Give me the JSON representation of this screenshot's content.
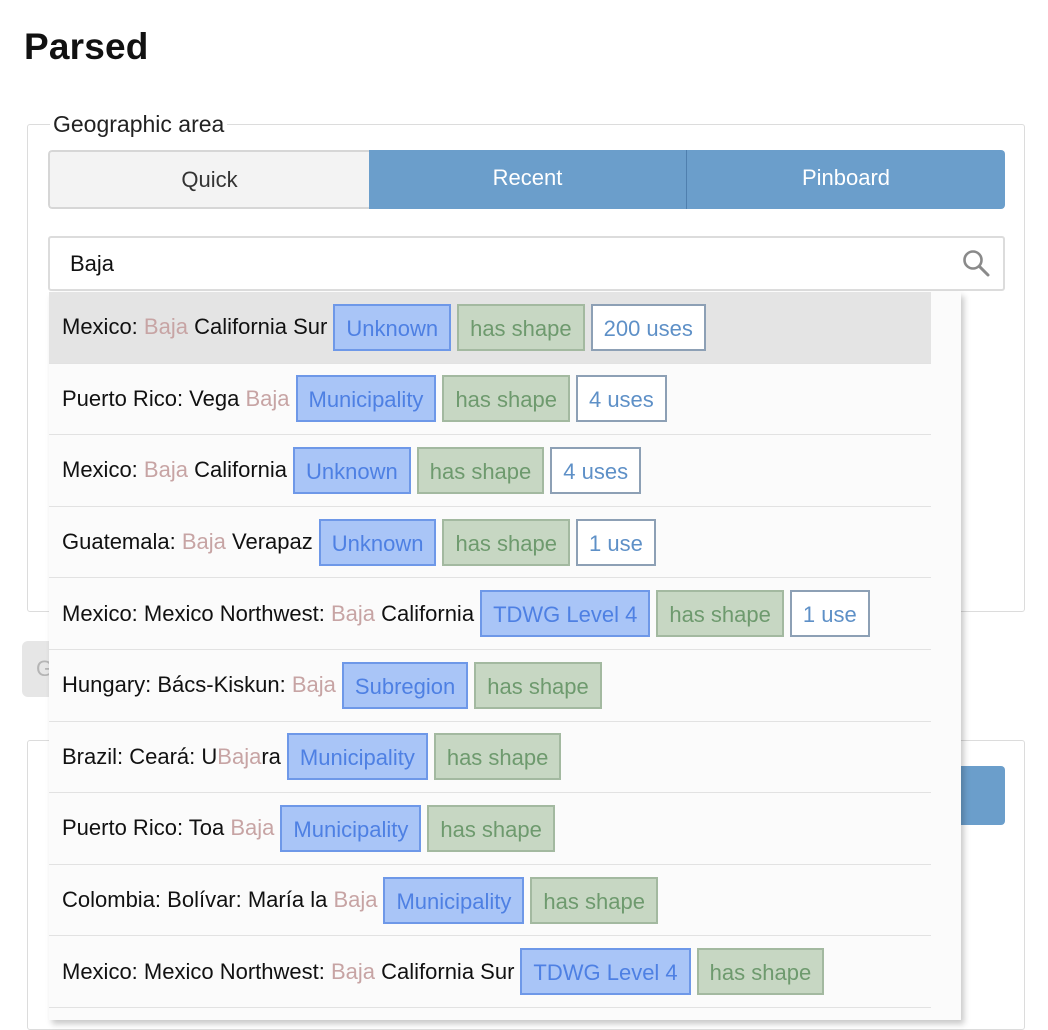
{
  "page": {
    "title": "Parsed"
  },
  "geographic_area": {
    "legend": "Geographic area",
    "tabs": [
      {
        "label": "Quick",
        "active": true
      },
      {
        "label": "Recent",
        "active": false
      },
      {
        "label": "Pinboard",
        "active": false
      }
    ],
    "search": {
      "value": "Baja",
      "placeholder": ""
    }
  },
  "background": {
    "button_label": "G"
  },
  "dropdown": {
    "results": [
      {
        "pre": "Mexico: ",
        "match": "Baja",
        "post": " California Sur",
        "type": "Unknown",
        "shape": "has shape",
        "uses": "200 uses",
        "highlighted": true
      },
      {
        "pre": "Puerto Rico: Vega ",
        "match": "Baja",
        "post": "",
        "type": "Municipality",
        "shape": "has shape",
        "uses": "4 uses"
      },
      {
        "pre": "Mexico: ",
        "match": "Baja",
        "post": " California",
        "type": "Unknown",
        "shape": "has shape",
        "uses": "4 uses"
      },
      {
        "pre": "Guatemala: ",
        "match": "Baja",
        "post": " Verapaz",
        "type": "Unknown",
        "shape": "has shape",
        "uses": "1 use"
      },
      {
        "pre": "Mexico: Mexico Northwest: ",
        "match": "Baja",
        "post": " California",
        "type": "TDWG Level 4",
        "shape": "has shape",
        "uses": "1 use"
      },
      {
        "pre": "Hungary: Bács-Kiskun: ",
        "match": "Baja",
        "post": "",
        "type": "Subregion",
        "shape": "has shape",
        "uses": ""
      },
      {
        "pre": "Brazil: Ceará: U",
        "match": "Baja",
        "post": "ra",
        "type": "Municipality",
        "shape": "has shape",
        "uses": ""
      },
      {
        "pre": "Puerto Rico: Toa ",
        "match": "Baja",
        "post": "",
        "type": "Municipality",
        "shape": "has shape",
        "uses": ""
      },
      {
        "pre": "Colombia: Bolívar: María la ",
        "match": "Baja",
        "post": "",
        "type": "Municipality",
        "shape": "has shape",
        "uses": ""
      },
      {
        "pre": "Mexico: Mexico Northwest: ",
        "match": "Baja",
        "post": " California Sur",
        "type": "TDWG Level 4",
        "shape": "has shape",
        "uses": ""
      }
    ]
  },
  "colors": {
    "tab_active_blue": "#6b9ecb",
    "type_badge_bg": "#a9c5f7",
    "shape_badge_bg": "#c7d7c3",
    "match_text": "#c7a4a4"
  },
  "icons": {
    "search": "magnifier-icon"
  }
}
